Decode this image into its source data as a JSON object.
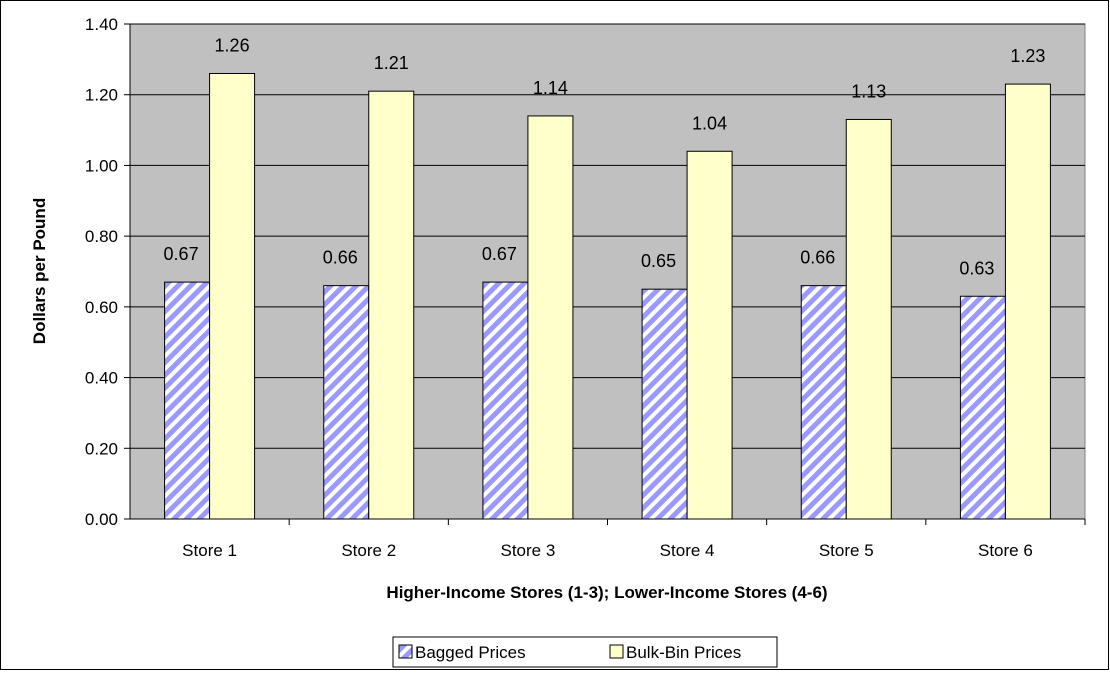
{
  "chart_data": {
    "type": "bar",
    "title": "",
    "xlabel": "Higher-Income Stores (1-3); Lower-Income Stores (4-6)",
    "ylabel": "Dollars per Pound",
    "categories": [
      "Store 1",
      "Store 2",
      "Store 3",
      "Store 4",
      "Store 5",
      "Store 6"
    ],
    "series": [
      {
        "name": "Bagged Prices",
        "values": [
          0.67,
          0.66,
          0.67,
          0.65,
          0.66,
          0.63
        ],
        "labels": [
          "0.67",
          "0.66",
          "0.67",
          "0.65",
          "0.66",
          "0.63"
        ],
        "pattern": "diagonal-stripes",
        "color": "#9999ff"
      },
      {
        "name": "Bulk-Bin Prices",
        "values": [
          1.26,
          1.21,
          1.14,
          1.04,
          1.13,
          1.23
        ],
        "labels": [
          "1.26",
          "1.21",
          "1.14",
          "1.04",
          "1.13",
          "1.23"
        ],
        "pattern": "solid",
        "color": "#ffffcc"
      }
    ],
    "ylim": [
      0,
      1.4
    ],
    "yticks": [
      "0.00",
      "0.20",
      "0.40",
      "0.60",
      "0.80",
      "1.00",
      "1.20",
      "1.40"
    ],
    "grid": true,
    "plot_background": "#c0c0c0",
    "legend_position": "bottom"
  }
}
